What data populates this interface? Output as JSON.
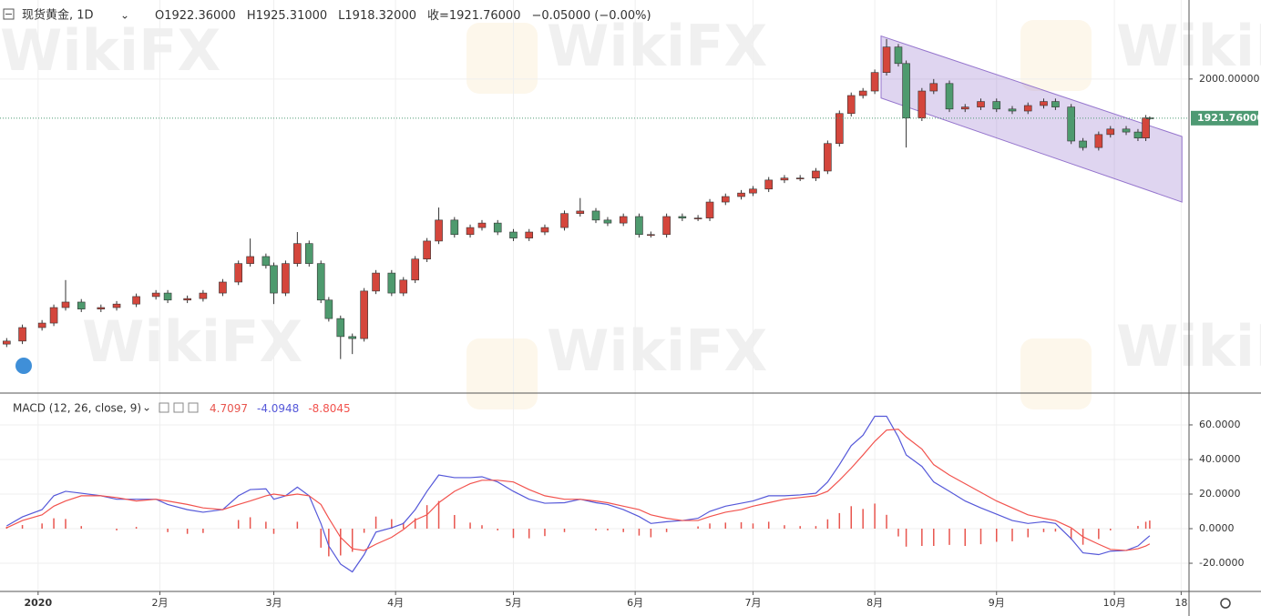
{
  "header": {
    "symbol": "现货黄金, 1D",
    "ohlc_labels": [
      "O1922.36000",
      "H1925.31000",
      "L1918.32000",
      "收=1921.76000",
      "−0.05000 (−0.00%)"
    ]
  },
  "watermark": "WikiFX",
  "chart_data": [
    {
      "type": "candlestick",
      "x": [
        -7,
        -3,
        2,
        5,
        8,
        12,
        17,
        21,
        26,
        31,
        34,
        39,
        43,
        48,
        52,
        55,
        59,
        61,
        64,
        67,
        70,
        73,
        75,
        78,
        81,
        84,
        87,
        91,
        94,
        97,
        100,
        103,
        107,
        111,
        114,
        118,
        122,
        126,
        130,
        135,
        139,
        143,
        146,
        150,
        154,
        157,
        161,
        165,
        169,
        172,
        176,
        180,
        183,
        187,
        191,
        195,
        199,
        202,
        205,
        208,
        211,
        214,
        217,
        220,
        222,
        226,
        229,
        233,
        237,
        241,
        245,
        249,
        253,
        257,
        260,
        264,
        267,
        271,
        274,
        278,
        281,
        283,
        284
      ],
      "open": [
        1470,
        1476,
        1503,
        1512,
        1543,
        1554,
        1540,
        1543,
        1550,
        1565,
        1572,
        1558,
        1561,
        1572,
        1594,
        1631,
        1645,
        1627,
        1572,
        1631,
        1671,
        1631,
        1558,
        1521,
        1485,
        1481,
        1576,
        1612,
        1572,
        1598,
        1640,
        1676,
        1718,
        1689,
        1703,
        1712,
        1694,
        1682,
        1694,
        1703,
        1731,
        1736,
        1718,
        1712,
        1725,
        1689,
        1689,
        1725,
        1722,
        1722,
        1754,
        1765,
        1772,
        1780,
        1798,
        1802,
        1802,
        1816,
        1871,
        1931,
        1967,
        1976,
        2013,
        2064,
        2031,
        1922,
        1976,
        1991,
        1940,
        1944,
        1955,
        1940,
        1936,
        1947,
        1955,
        1944,
        1876,
        1863,
        1889,
        1900,
        1894,
        1882,
        1922.36
      ],
      "high": [
        1482,
        1509,
        1518,
        1549,
        1598,
        1560,
        1549,
        1556,
        1571,
        1578,
        1578,
        1567,
        1578,
        1600,
        1637,
        1681,
        1651,
        1633,
        1637,
        1694,
        1677,
        1637,
        1564,
        1527,
        1491,
        1582,
        1618,
        1618,
        1604,
        1646,
        1682,
        1743,
        1724,
        1709,
        1718,
        1718,
        1700,
        1700,
        1709,
        1737,
        1762,
        1742,
        1724,
        1731,
        1731,
        1695,
        1731,
        1731,
        1728,
        1760,
        1771,
        1778,
        1786,
        1804,
        1808,
        1808,
        1822,
        1877,
        1937,
        1973,
        1982,
        2019,
        2080,
        2070,
        2037,
        1982,
        2000,
        1997,
        1950,
        1961,
        1961,
        1946,
        1953,
        1961,
        1961,
        1950,
        1882,
        1895,
        1906,
        1906,
        1900,
        1928,
        1925.31
      ],
      "low": [
        1464,
        1470,
        1497,
        1506,
        1537,
        1534,
        1534,
        1537,
        1544,
        1559,
        1552,
        1552,
        1555,
        1566,
        1588,
        1625,
        1621,
        1550,
        1566,
        1625,
        1625,
        1552,
        1515,
        1440,
        1450,
        1475,
        1570,
        1566,
        1566,
        1592,
        1634,
        1670,
        1683,
        1683,
        1697,
        1688,
        1676,
        1676,
        1688,
        1697,
        1725,
        1712,
        1706,
        1706,
        1683,
        1683,
        1683,
        1716,
        1716,
        1716,
        1748,
        1759,
        1766,
        1774,
        1792,
        1796,
        1796,
        1810,
        1865,
        1925,
        1961,
        1970,
        2007,
        2025,
        1863,
        1916,
        1970,
        1934,
        1934,
        1938,
        1934,
        1930,
        1930,
        1941,
        1938,
        1870,
        1857,
        1857,
        1883,
        1888,
        1876,
        1876,
        1918.32
      ],
      "close": [
        1476,
        1503,
        1512,
        1543,
        1554,
        1540,
        1543,
        1550,
        1565,
        1572,
        1558,
        1561,
        1572,
        1594,
        1631,
        1645,
        1627,
        1572,
        1631,
        1671,
        1631,
        1558,
        1521,
        1485,
        1481,
        1576,
        1612,
        1572,
        1598,
        1640,
        1676,
        1718,
        1689,
        1703,
        1712,
        1694,
        1682,
        1694,
        1703,
        1731,
        1736,
        1718,
        1712,
        1725,
        1689,
        1689,
        1725,
        1722,
        1722,
        1754,
        1765,
        1772,
        1780,
        1798,
        1802,
        1802,
        1816,
        1871,
        1931,
        1967,
        1976,
        2013,
        2064,
        2031,
        1922,
        1976,
        1991,
        1940,
        1944,
        1955,
        1940,
        1936,
        1947,
        1955,
        1944,
        1876,
        1863,
        1889,
        1900,
        1894,
        1882,
        1922.36,
        1921.76
      ],
      "up_color": "#d4463c",
      "down_color": "#4e9a6e",
      "xlim": [
        -8.7,
        294
      ],
      "ylim": [
        1372,
        2158
      ],
      "yticks": [
        {
          "value": 2000,
          "label": "2000.00000"
        }
      ],
      "grid": true,
      "last_price": {
        "value": 1921.76,
        "label": "1921.76000",
        "color": "#4e9a73"
      },
      "channel": {
        "x": [
          215.6,
          292.2
        ],
        "upper": [
          2086,
          1885
        ],
        "lower": [
          1962,
          1754
        ],
        "color": "#9575cd"
      }
    },
    {
      "type": "macd",
      "title": "MACD (12, 26, close, 9)",
      "x": [
        -7,
        -3,
        2,
        5,
        8,
        12,
        17,
        21,
        26,
        31,
        34,
        39,
        43,
        48,
        52,
        55,
        59,
        61,
        64,
        67,
        70,
        73,
        75,
        78,
        81,
        84,
        87,
        91,
        94,
        97,
        100,
        103,
        107,
        111,
        114,
        118,
        122,
        126,
        130,
        135,
        139,
        143,
        146,
        150,
        154,
        157,
        161,
        165,
        169,
        172,
        176,
        180,
        183,
        187,
        191,
        195,
        199,
        202,
        205,
        208,
        211,
        214,
        217,
        220,
        222,
        226,
        229,
        233,
        237,
        241,
        245,
        249,
        253,
        257,
        260,
        264,
        267,
        271,
        274,
        278,
        281,
        283,
        284
      ],
      "series": [
        {
          "kind": "histogram",
          "color": "#e8554e",
          "last_label": "4.7097",
          "values": [
            1.1,
            2.1,
            3,
            6,
            5.6,
            1.5,
            0,
            -1,
            1,
            0,
            -2,
            -3,
            -2.5,
            0,
            5,
            6.6,
            4,
            -3,
            0,
            4,
            0,
            -11,
            -16,
            -15.5,
            -13.4,
            -2.4,
            7,
            5.5,
            3.5,
            6,
            13.6,
            16,
            7.9,
            3.5,
            2,
            -1,
            -5.4,
            -5.6,
            -4.3,
            -2,
            0,
            -1,
            -1,
            -2,
            -4,
            -5,
            -2,
            0,
            1.3,
            3,
            3.5,
            3.7,
            3,
            4,
            2,
            1.5,
            1.5,
            5.4,
            9,
            13,
            11.4,
            14.5,
            8,
            -4.5,
            -10.4,
            -10,
            -10,
            -9.4,
            -10,
            -9,
            -7.6,
            -7.3,
            -5,
            -2,
            -1.7,
            -6.3,
            -9.3,
            -6,
            -1,
            0,
            1.6,
            4,
            4.7097
          ]
        },
        {
          "kind": "line",
          "color": "#5558d9",
          "last_label": "-4.0948",
          "values": [
            1.6,
            6.8,
            11,
            19,
            21.6,
            20.5,
            19,
            17,
            17,
            17,
            14,
            11,
            9.5,
            11,
            19,
            22.6,
            23,
            17,
            19,
            24,
            19,
            3,
            -10,
            -20.5,
            -25,
            -15,
            -2,
            0.5,
            3,
            11,
            21.6,
            31,
            29.5,
            29.5,
            30,
            27,
            21.6,
            17,
            14.7,
            15,
            17,
            15,
            14,
            11,
            7,
            3,
            4,
            4.7,
            6,
            10,
            13,
            14.7,
            16,
            19,
            19,
            19.5,
            20.5,
            27,
            37,
            48,
            54,
            65,
            65,
            53,
            42.6,
            36,
            27,
            21.6,
            16,
            12,
            8.4,
            4.7,
            3,
            4,
            3,
            -5.8,
            -14,
            -15,
            -13,
            -12.6,
            -10,
            -6,
            -4.0948
          ]
        },
        {
          "kind": "line",
          "color": "#f2534e",
          "last_label": "-8.8045",
          "values": [
            0.5,
            4.7,
            8,
            13,
            16,
            19,
            19,
            18,
            16,
            17,
            16,
            14,
            12,
            11,
            14,
            16,
            19,
            20,
            19,
            20,
            19,
            14,
            6,
            -5,
            -11.6,
            -12.6,
            -9,
            -5,
            -0.5,
            5,
            8,
            15,
            21.6,
            26,
            28,
            28,
            27,
            22.6,
            19,
            17,
            17,
            16,
            15,
            13,
            11,
            8,
            6,
            4.7,
            4.7,
            7,
            9.5,
            11,
            13,
            15,
            17,
            18,
            19,
            21.6,
            28,
            35,
            42.6,
            50.5,
            57,
            57.5,
            53,
            46,
            37,
            31,
            26,
            21,
            16,
            12,
            8,
            6,
            4.7,
            0.5,
            -4.7,
            -9,
            -12,
            -12.6,
            -11.6,
            -10,
            -8.8045
          ]
        }
      ],
      "xlim": [
        -8.7,
        294
      ],
      "ylim": [
        -36.3,
        78.4
      ],
      "yticks": [
        {
          "value": 60,
          "label": "60.0000"
        },
        {
          "value": 40,
          "label": "40.0000"
        },
        {
          "value": 20,
          "label": "20.0000"
        },
        {
          "value": 0,
          "label": "0.0000"
        },
        {
          "value": -20,
          "label": "-20.0000"
        }
      ],
      "xticks": [
        {
          "value": 1,
          "label": "2020"
        },
        {
          "value": 32,
          "label": "2月"
        },
        {
          "value": 61,
          "label": "3月"
        },
        {
          "value": 92,
          "label": "4月"
        },
        {
          "value": 122,
          "label": "5月"
        },
        {
          "value": 153,
          "label": "6月"
        },
        {
          "value": 183,
          "label": "7月"
        },
        {
          "value": 214,
          "label": "8月"
        },
        {
          "value": 245,
          "label": "9月"
        },
        {
          "value": 275,
          "label": "10月"
        },
        {
          "value": 292,
          "label": "18"
        }
      ],
      "grid": true
    }
  ]
}
